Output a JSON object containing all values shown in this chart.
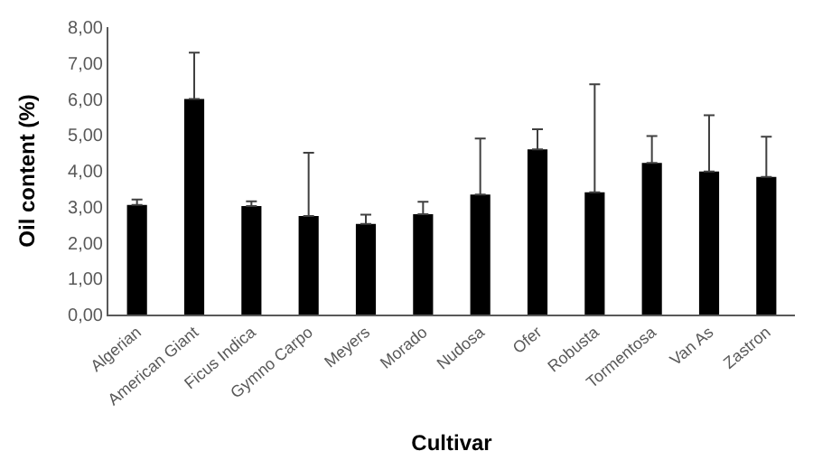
{
  "chart_data": {
    "type": "bar",
    "xlabel": "Cultivar",
    "ylabel": "Oil content (%)",
    "categories": [
      "Algerian",
      "American Giant",
      "Ficus Indica",
      "Gymno Carpo",
      "Meyers",
      "Morado",
      "Nudosa",
      "Ofer",
      "Robusta",
      "Tormentosa",
      "Van As",
      "Zastron"
    ],
    "values": [
      3.05,
      6.0,
      3.02,
      2.74,
      2.52,
      2.79,
      3.34,
      4.6,
      3.4,
      4.22,
      3.98,
      3.83
    ],
    "errors": [
      [
        3.05,
        3.2
      ],
      [
        6.0,
        7.29
      ],
      [
        3.02,
        3.15
      ],
      [
        2.74,
        4.5
      ],
      [
        2.52,
        2.78
      ],
      [
        2.79,
        3.14
      ],
      [
        3.34,
        4.9
      ],
      [
        4.6,
        5.16
      ],
      [
        3.4,
        6.41
      ],
      [
        4.22,
        4.97
      ],
      [
        3.98,
        5.55
      ],
      [
        3.83,
        4.95
      ]
    ],
    "color": "#000000",
    "ylim": [
      0,
      8
    ],
    "yticks": [
      {
        "value": 0,
        "label": "0,00"
      },
      {
        "value": 1,
        "label": "1,00"
      },
      {
        "value": 2,
        "label": "2,00"
      },
      {
        "value": 3,
        "label": "3,00"
      },
      {
        "value": 4,
        "label": "4,00"
      },
      {
        "value": 5,
        "label": "5,00"
      },
      {
        "value": 6,
        "label": "6,00"
      },
      {
        "value": 7,
        "label": "7,00"
      },
      {
        "value": 8,
        "label": "8,00"
      }
    ]
  }
}
